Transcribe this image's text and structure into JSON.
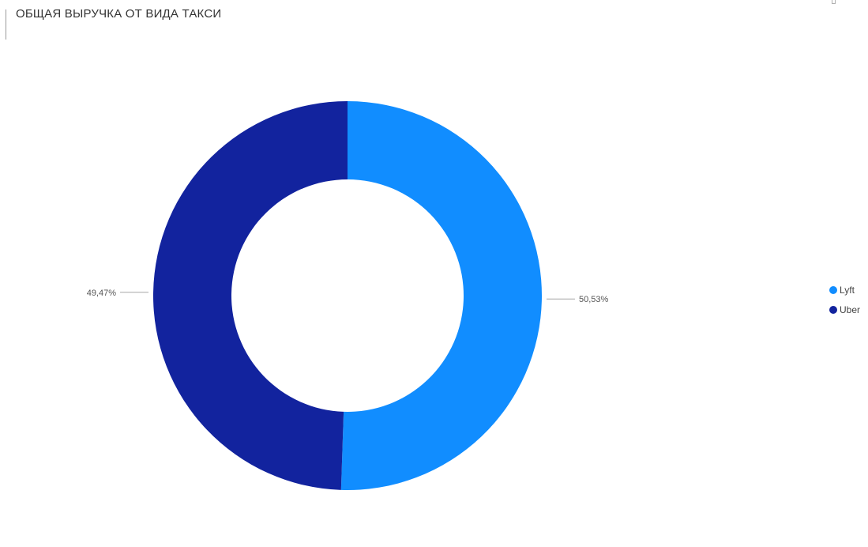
{
  "chart_data": {
    "type": "pie",
    "variant": "donut",
    "title": "ОБЩАЯ ВЫРУЧКА ОТ ВИДА ТАКСИ",
    "categories": [
      "Lyft",
      "Uber"
    ],
    "values": [
      50.53,
      49.47
    ],
    "data_labels": [
      "50,53%",
      "49,47%"
    ],
    "colors": [
      "#118DFF",
      "#12239E"
    ],
    "legend_position": "right"
  }
}
